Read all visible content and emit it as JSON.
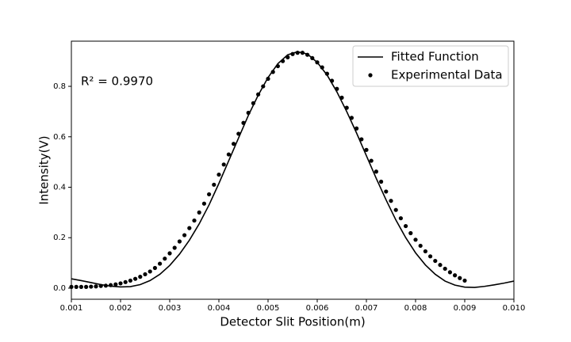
{
  "chart_data": {
    "type": "line",
    "x_label": "Detector Slit Position(m)",
    "y_label": "Intensity(V)",
    "annotation": "R² = 0.9970",
    "xlim": [
      0.001,
      0.01
    ],
    "ylim": [
      -0.044,
      0.979
    ],
    "xticks": [
      0.001,
      0.002,
      0.003,
      0.004,
      0.005,
      0.006,
      0.007,
      0.008,
      0.009,
      {
        "value": 0.01,
        "label": "0.010"
      }
    ],
    "yticks": [
      {
        "value": 0,
        "label": "0.0"
      },
      0.2,
      0.4,
      0.6,
      0.8
    ],
    "legend": "upper right",
    "series": [
      {
        "name": "Fitted Function",
        "type": "line",
        "color": "#000000",
        "x": [
          0.001,
          0.0012,
          0.0014,
          0.0016,
          0.0018,
          0.002,
          0.0022,
          0.0024,
          0.0026,
          0.0028,
          0.003,
          0.0032,
          0.0034,
          0.0036,
          0.0038,
          0.004,
          0.0042,
          0.0044,
          0.0046,
          0.0048,
          0.005,
          0.0052,
          0.0054,
          0.0056,
          0.0058,
          0.006,
          0.0062,
          0.0064,
          0.0066,
          0.0068,
          0.007,
          0.0072,
          0.0074,
          0.0076,
          0.0078,
          0.008,
          0.0082,
          0.0084,
          0.0086,
          0.0088,
          0.009,
          0.0092,
          0.0094,
          0.0096,
          0.0098,
          0.01
        ],
        "values": [
          0.037,
          0.03,
          0.022,
          0.014,
          0.008,
          0.005,
          0.006,
          0.014,
          0.03,
          0.055,
          0.09,
          0.135,
          0.19,
          0.255,
          0.33,
          0.415,
          0.505,
          0.595,
          0.685,
          0.765,
          0.835,
          0.89,
          0.925,
          0.937,
          0.928,
          0.895,
          0.845,
          0.778,
          0.7,
          0.615,
          0.525,
          0.435,
          0.35,
          0.27,
          0.2,
          0.14,
          0.092,
          0.055,
          0.028,
          0.012,
          0.004,
          0.003,
          0.007,
          0.013,
          0.02,
          0.028
        ]
      },
      {
        "name": "Experimental Data",
        "type": "scatter",
        "color": "#000000",
        "x": [
          0.001,
          0.0011,
          0.0012,
          0.0013,
          0.0014,
          0.0015,
          0.0016,
          0.0017,
          0.0018,
          0.0019,
          0.002,
          0.0021,
          0.0022,
          0.0023,
          0.0024,
          0.0025,
          0.0026,
          0.0027,
          0.0028,
          0.0029,
          0.003,
          0.0031,
          0.0032,
          0.0033,
          0.0034,
          0.0035,
          0.0036,
          0.0037,
          0.0038,
          0.0039,
          0.004,
          0.0041,
          0.0042,
          0.0043,
          0.0044,
          0.0045,
          0.0046,
          0.0047,
          0.0048,
          0.0049,
          0.005,
          0.0051,
          0.0052,
          0.0053,
          0.0054,
          0.0055,
          0.0056,
          0.0057,
          0.0058,
          0.0059,
          0.006,
          0.0061,
          0.0062,
          0.0063,
          0.0064,
          0.0065,
          0.0066,
          0.0067,
          0.0068,
          0.0069,
          0.007,
          0.0071,
          0.0072,
          0.0073,
          0.0074,
          0.0075,
          0.0076,
          0.0077,
          0.0078,
          0.0079,
          0.008,
          0.0081,
          0.0082,
          0.0083,
          0.0084,
          0.0085,
          0.0086,
          0.0087,
          0.0088,
          0.0089,
          0.009
        ],
        "values": [
          0.005,
          0.005,
          0.005,
          0.005,
          0.006,
          0.007,
          0.009,
          0.01,
          0.012,
          0.015,
          0.019,
          0.024,
          0.03,
          0.037,
          0.045,
          0.055,
          0.066,
          0.08,
          0.097,
          0.117,
          0.138,
          0.16,
          0.185,
          0.21,
          0.238,
          0.268,
          0.3,
          0.335,
          0.372,
          0.41,
          0.45,
          0.49,
          0.53,
          0.572,
          0.612,
          0.655,
          0.695,
          0.733,
          0.768,
          0.8,
          0.83,
          0.857,
          0.88,
          0.9,
          0.915,
          0.928,
          0.933,
          0.933,
          0.925,
          0.912,
          0.895,
          0.875,
          0.85,
          0.822,
          0.79,
          0.755,
          0.715,
          0.675,
          0.633,
          0.59,
          0.548,
          0.505,
          0.462,
          0.422,
          0.383,
          0.346,
          0.31,
          0.277,
          0.246,
          0.218,
          0.192,
          0.168,
          0.146,
          0.126,
          0.108,
          0.092,
          0.077,
          0.063,
          0.051,
          0.04,
          0.03
        ]
      }
    ]
  }
}
